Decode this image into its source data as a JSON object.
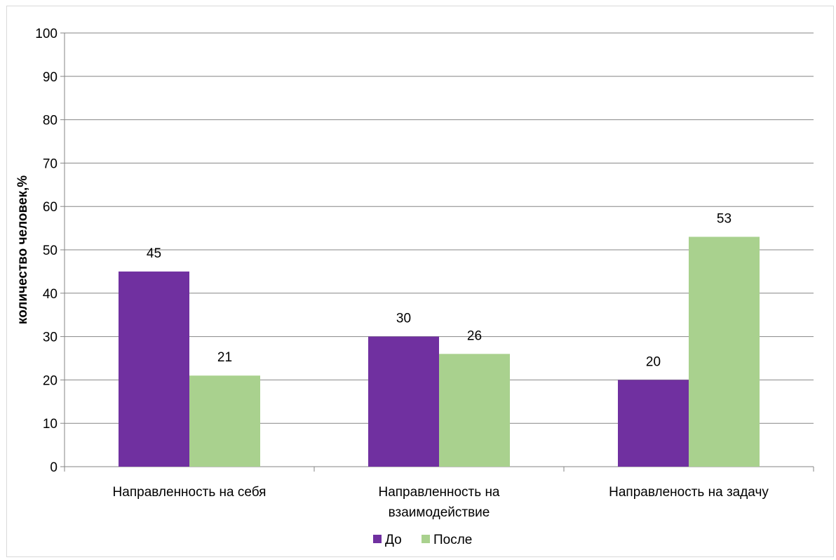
{
  "chart_data": {
    "type": "bar",
    "categories": [
      [
        "Направленность на себя"
      ],
      [
        "Направленность на",
        "взаимодействие"
      ],
      [
        "Направленость на задачу"
      ]
    ],
    "series": [
      {
        "name": "До",
        "values": [
          45,
          30,
          20
        ],
        "color": "#7030A0"
      },
      {
        "name": "После",
        "values": [
          21,
          26,
          53
        ],
        "color": "#A9D18E"
      }
    ],
    "ylabel": "количество человек,%",
    "xlabel": "",
    "ylim": [
      0,
      100
    ],
    "yticks": [
      0,
      10,
      20,
      30,
      40,
      50,
      60,
      70,
      80,
      90,
      100
    ],
    "grid": true,
    "legend_position": "bottom"
  }
}
